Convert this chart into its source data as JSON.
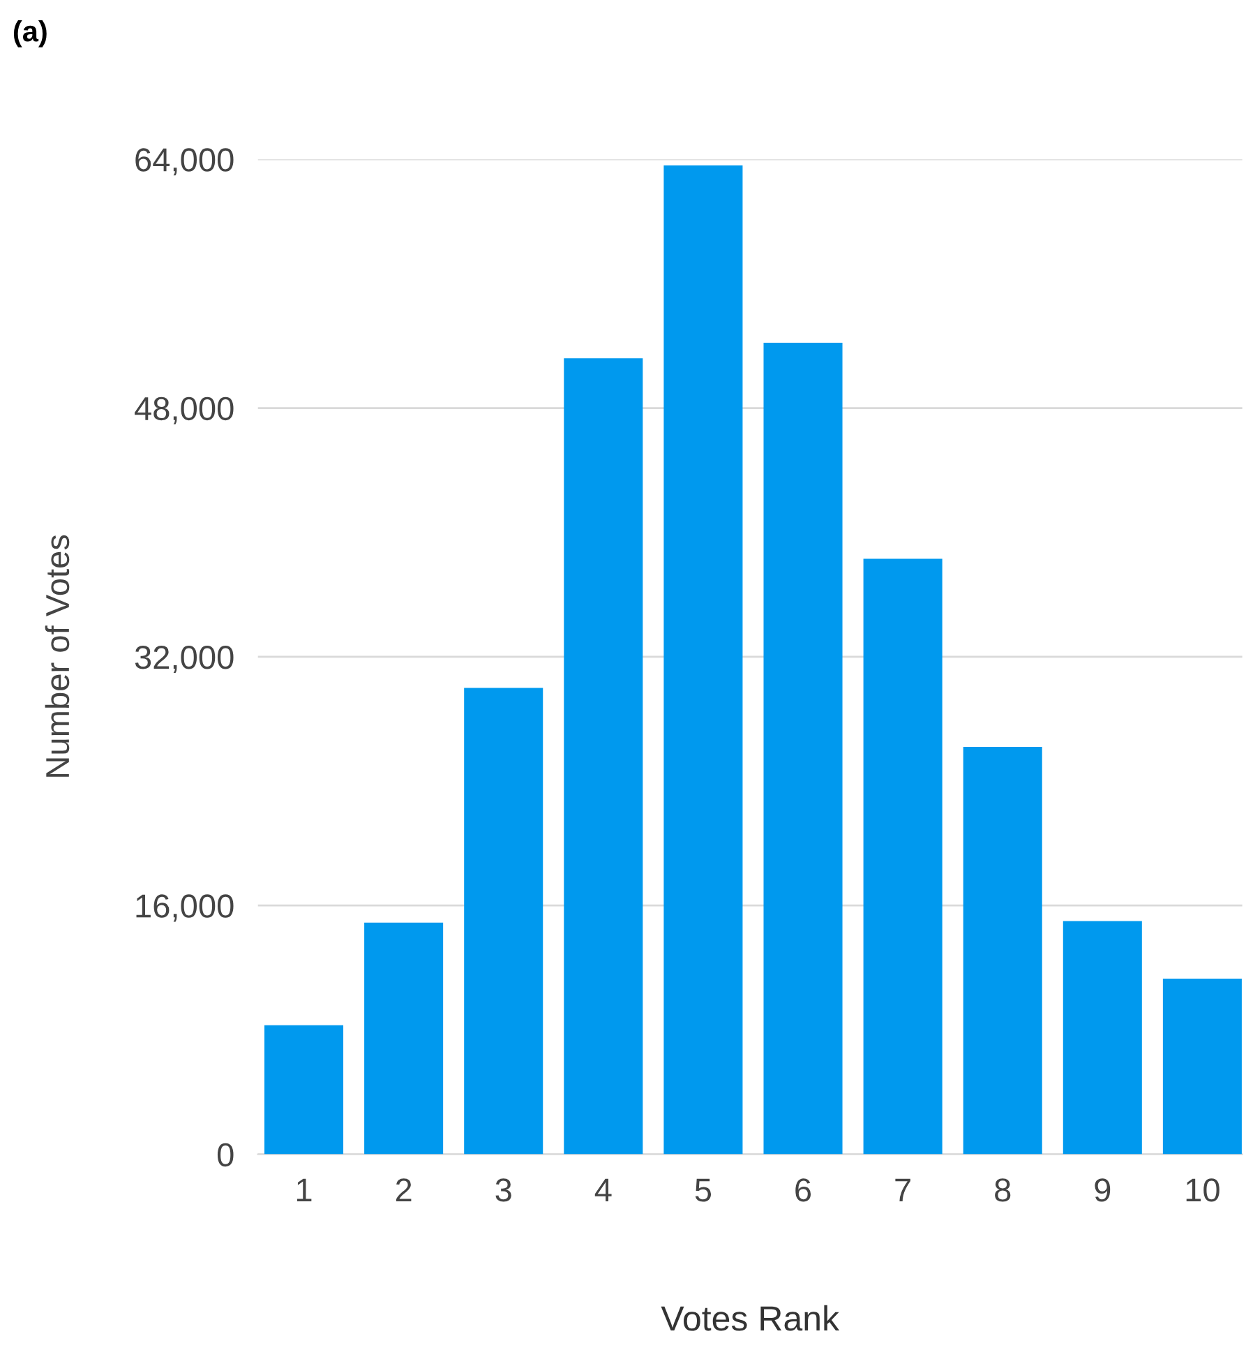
{
  "chart_data": {
    "type": "bar",
    "title": "(a)",
    "xlabel": "Votes Rank",
    "ylabel": "Number of Votes",
    "categories": [
      "1",
      "2",
      "3",
      "4",
      "5",
      "6",
      "7",
      "8",
      "9",
      "10"
    ],
    "values": [
      8300,
      14900,
      30000,
      51200,
      63600,
      52200,
      38300,
      26200,
      15000,
      11300
    ],
    "color": "#0099ee",
    "ylim": [
      0,
      64000
    ],
    "yticks": [
      {
        "value": 0,
        "label": "0"
      },
      {
        "value": 16000,
        "label": "16,000"
      },
      {
        "value": 32000,
        "label": "32,000"
      },
      {
        "value": 48000,
        "label": "48,000"
      },
      {
        "value": 64000,
        "label": "64,000"
      }
    ],
    "grid": "y",
    "legend": false
  }
}
